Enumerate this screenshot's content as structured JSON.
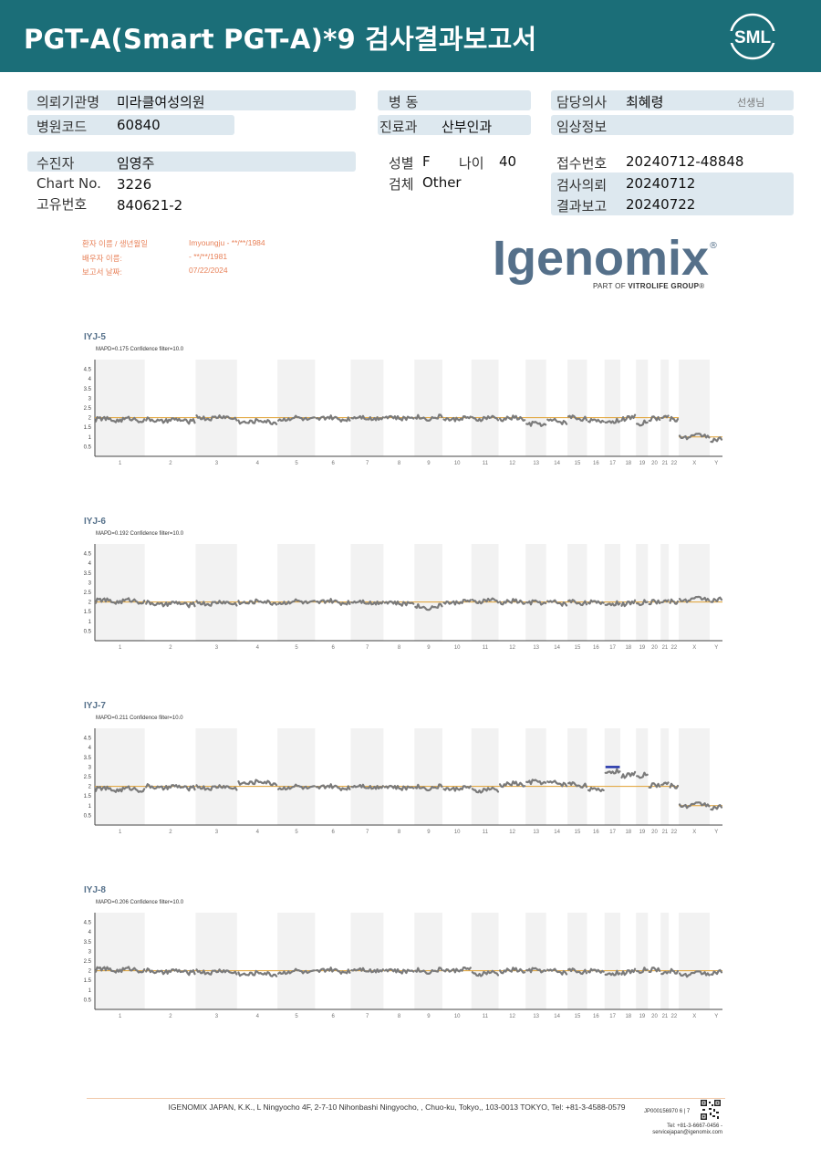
{
  "header": {
    "title": "PGT-A(Smart  PGT-A)*9 검사결과보고서",
    "logo_text": "SML",
    "bg_color": "#1b6e78"
  },
  "info": {
    "institution_label": "의뢰기관명",
    "institution_value": "미라클여성의원",
    "hospital_code_label": "병원코드",
    "hospital_code_value": "60840",
    "ward_label": "병  동",
    "ward_value": "",
    "dept_label": "진료과",
    "dept_value": "산부인과",
    "doctor_label": "담당의사",
    "doctor_value": "최혜령",
    "doctor_suffix": "선생님",
    "clinical_label": "임상정보",
    "clinical_value": "",
    "patient_label": "수진자",
    "patient_value": "임영주",
    "chart_label": "Chart No.",
    "chart_value": "3226",
    "id_label": "고유번호",
    "id_value": "840621-2",
    "sex_label": "성별",
    "sex_value": "F",
    "age_label": "나이",
    "age_value": "40",
    "specimen_label": "검체",
    "specimen_value": "Other",
    "receipt_label": "접수번호",
    "receipt_value": "20240712-48848",
    "request_label": "검사의뢰",
    "request_value": "20240712",
    "report_label": "결과보고",
    "report_value": "20240722"
  },
  "report_meta": {
    "patient_name_label": "환자 이름 / 생년월일",
    "patient_name_value": "Imyoungju - **/**/1984",
    "partner_label": "배우자 이름:",
    "partner_value": "- **/**/1981",
    "date_label": "보고서 날짜:",
    "date_value": "07/22/2024"
  },
  "igenomix": {
    "wordmark": "Igenomix",
    "registered": "®",
    "sub_prefix": "PART OF ",
    "sub_brand": "VITROLIFE GROUP",
    "sub_suffix": "®"
  },
  "chart_data": [
    {
      "type": "scatter",
      "title": "IYJ-5",
      "subtitle": "MAPD=0.175 Confidence filter=10.0",
      "y_ticks": [
        "4.5",
        "4",
        "3.5",
        "3",
        "2.5",
        "2",
        "1.5",
        "1",
        "0.5"
      ],
      "ylim": [
        0,
        5
      ],
      "categories": [
        "1",
        "2",
        "3",
        "4",
        "5",
        "6",
        "7",
        "8",
        "9",
        "10",
        "11",
        "12",
        "13",
        "14",
        "15",
        "16",
        "17",
        "18",
        "19",
        "20",
        "21",
        "22",
        "X",
        "Y"
      ],
      "reference_level": 2,
      "segments": [
        {
          "chr": "1",
          "level": 1.9
        },
        {
          "chr": "2",
          "level": 1.85
        },
        {
          "chr": "3",
          "level": 2.0
        },
        {
          "chr": "4",
          "level": 1.8
        },
        {
          "chr": "5",
          "level": 1.95
        },
        {
          "chr": "6",
          "level": 1.95
        },
        {
          "chr": "7",
          "level": 2.0
        },
        {
          "chr": "8",
          "level": 2.0
        },
        {
          "chr": "9",
          "level": 2.0
        },
        {
          "chr": "10",
          "level": 1.95
        },
        {
          "chr": "11",
          "level": 1.95
        },
        {
          "chr": "12",
          "level": 1.95
        },
        {
          "chr": "13",
          "level": 1.65
        },
        {
          "chr": "14",
          "level": 1.8
        },
        {
          "chr": "15",
          "level": 2.0
        },
        {
          "chr": "16",
          "level": 1.85
        },
        {
          "chr": "17",
          "level": 1.85
        },
        {
          "chr": "18",
          "level": 2.0
        },
        {
          "chr": "19",
          "level": 1.7
        },
        {
          "chr": "20",
          "level": 1.9
        },
        {
          "chr": "21",
          "level": 2.0
        },
        {
          "chr": "22",
          "level": 1.9
        },
        {
          "chr": "X",
          "level": 1.05
        },
        {
          "chr": "Y",
          "level": 0.9
        }
      ],
      "highlight": null
    },
    {
      "type": "scatter",
      "title": "IYJ-6",
      "subtitle": "MAPD=0.192 Confidence filter=10.0",
      "y_ticks": [
        "4.5",
        "4",
        "3.5",
        "3",
        "2.5",
        "2",
        "1.5",
        "1",
        "0.5"
      ],
      "ylim": [
        0,
        5
      ],
      "categories": [
        "1",
        "2",
        "3",
        "4",
        "5",
        "6",
        "7",
        "8",
        "9",
        "10",
        "11",
        "12",
        "13",
        "14",
        "15",
        "16",
        "17",
        "18",
        "19",
        "20",
        "21",
        "22",
        "X",
        "Y"
      ],
      "reference_level": 2,
      "segments": [
        {
          "chr": "1",
          "level": 2.05
        },
        {
          "chr": "2",
          "level": 1.9
        },
        {
          "chr": "3",
          "level": 1.95
        },
        {
          "chr": "4",
          "level": 2.0
        },
        {
          "chr": "5",
          "level": 2.0
        },
        {
          "chr": "6",
          "level": 2.0
        },
        {
          "chr": "7",
          "level": 2.0
        },
        {
          "chr": "8",
          "level": 1.95
        },
        {
          "chr": "9",
          "level": 1.75
        },
        {
          "chr": "10",
          "level": 2.0
        },
        {
          "chr": "11",
          "level": 2.05
        },
        {
          "chr": "12",
          "level": 2.0
        },
        {
          "chr": "13",
          "level": 1.95
        },
        {
          "chr": "14",
          "level": 1.95
        },
        {
          "chr": "15",
          "level": 2.0
        },
        {
          "chr": "16",
          "level": 2.0
        },
        {
          "chr": "17",
          "level": 1.95
        },
        {
          "chr": "18",
          "level": 1.95
        },
        {
          "chr": "19",
          "level": 1.95
        },
        {
          "chr": "20",
          "level": 1.95
        },
        {
          "chr": "21",
          "level": 2.0
        },
        {
          "chr": "22",
          "level": 2.0
        },
        {
          "chr": "X",
          "level": 2.15
        },
        {
          "chr": "Y",
          "level": 2.15
        }
      ],
      "highlight": null
    },
    {
      "type": "scatter",
      "title": "IYJ-7",
      "subtitle": "MAPD=0.211 Confidence filter=10.0",
      "y_ticks": [
        "4.5",
        "4",
        "3.5",
        "3",
        "2.5",
        "2",
        "1.5",
        "1",
        "0.5"
      ],
      "ylim": [
        0,
        5
      ],
      "categories": [
        "1",
        "2",
        "3",
        "4",
        "5",
        "6",
        "7",
        "8",
        "9",
        "10",
        "11",
        "12",
        "13",
        "14",
        "15",
        "16",
        "17",
        "18",
        "19",
        "20",
        "21",
        "22",
        "X",
        "Y"
      ],
      "reference_level": 2,
      "segments": [
        {
          "chr": "1",
          "level": 1.85
        },
        {
          "chr": "2",
          "level": 1.95
        },
        {
          "chr": "3",
          "level": 1.95
        },
        {
          "chr": "4",
          "level": 2.2
        },
        {
          "chr": "5",
          "level": 1.95
        },
        {
          "chr": "6",
          "level": 1.95
        },
        {
          "chr": "7",
          "level": 2.0
        },
        {
          "chr": "8",
          "level": 1.95
        },
        {
          "chr": "9",
          "level": 1.95
        },
        {
          "chr": "10",
          "level": 1.9
        },
        {
          "chr": "11",
          "level": 1.8
        },
        {
          "chr": "12",
          "level": 2.1
        },
        {
          "chr": "13",
          "level": 2.2
        },
        {
          "chr": "14",
          "level": 2.15
        },
        {
          "chr": "15",
          "level": 2.1
        },
        {
          "chr": "16",
          "level": 1.85
        },
        {
          "chr": "17",
          "level": 2.8
        },
        {
          "chr": "18",
          "level": 2.6
        },
        {
          "chr": "19",
          "level": 2.55
        },
        {
          "chr": "20",
          "level": 2.0
        },
        {
          "chr": "21",
          "level": 2.1
        },
        {
          "chr": "22",
          "level": 2.0
        },
        {
          "chr": "X",
          "level": 1.05
        },
        {
          "chr": "Y",
          "level": 0.95
        }
      ],
      "highlight": {
        "chr": "17",
        "level": 3.0,
        "color": "#2233aa"
      }
    },
    {
      "type": "scatter",
      "title": "IYJ-8",
      "subtitle": "MAPD=0.206 Confidence filter=10.0",
      "y_ticks": [
        "4.5",
        "4",
        "3.5",
        "3",
        "2.5",
        "2",
        "1.5",
        "1",
        "0.5"
      ],
      "ylim": [
        0,
        5
      ],
      "categories": [
        "1",
        "2",
        "3",
        "4",
        "5",
        "6",
        "7",
        "8",
        "9",
        "10",
        "11",
        "12",
        "13",
        "14",
        "15",
        "16",
        "17",
        "18",
        "19",
        "20",
        "21",
        "22",
        "X",
        "Y"
      ],
      "reference_level": 2,
      "segments": [
        {
          "chr": "1",
          "level": 2.05
        },
        {
          "chr": "2",
          "level": 1.95
        },
        {
          "chr": "3",
          "level": 1.95
        },
        {
          "chr": "4",
          "level": 1.85
        },
        {
          "chr": "5",
          "level": 1.95
        },
        {
          "chr": "6",
          "level": 2.0
        },
        {
          "chr": "7",
          "level": 2.05
        },
        {
          "chr": "8",
          "level": 2.0
        },
        {
          "chr": "9",
          "level": 2.0
        },
        {
          "chr": "10",
          "level": 2.05
        },
        {
          "chr": "11",
          "level": 1.85
        },
        {
          "chr": "12",
          "level": 2.0
        },
        {
          "chr": "13",
          "level": 2.0
        },
        {
          "chr": "14",
          "level": 1.95
        },
        {
          "chr": "15",
          "level": 2.0
        },
        {
          "chr": "16",
          "level": 2.0
        },
        {
          "chr": "17",
          "level": 1.9
        },
        {
          "chr": "18",
          "level": 1.95
        },
        {
          "chr": "19",
          "level": 2.0
        },
        {
          "chr": "20",
          "level": 2.0
        },
        {
          "chr": "21",
          "level": 1.85
        },
        {
          "chr": "22",
          "level": 1.95
        },
        {
          "chr": "X",
          "level": 1.85
        },
        {
          "chr": "Y",
          "level": 1.95
        }
      ],
      "highlight": null
    }
  ],
  "footer": {
    "address": "IGENOMIX JAPAN, K.K., L Ningyocho 4F, 2-7-10 Nihonbashi Ningyocho, , Chuo-ku, Tokyo,, 103-0013 TOKYO, Tel: +81-3-4588-0579",
    "code": "JP000156970    6 | 7",
    "phone": "Tel: +81-3-6667-0456 -",
    "email": "servicejapan@igenomix.com"
  },
  "colors": {
    "reference_line": "#e0a030",
    "points": "#7a7a7a",
    "band": "#f2f2f2",
    "label_fill": "#dde8ef"
  }
}
